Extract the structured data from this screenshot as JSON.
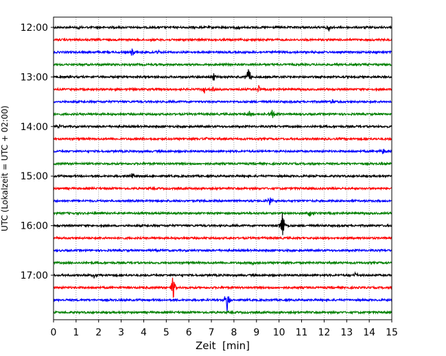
{
  "chart_data": {
    "type": "line",
    "title": "",
    "xlabel": "Zeit  [min]",
    "ylabel": "UTC (Lokalzeit = UTC + 02:00)",
    "xlim": [
      0,
      15
    ],
    "x_ticks": [
      "0",
      "1",
      "2",
      "3",
      "4",
      "5",
      "6",
      "7",
      "8",
      "9",
      "10",
      "11",
      "12",
      "13",
      "14",
      "15"
    ],
    "y_tick_labels": [
      "12:00",
      "13:00",
      "14:00",
      "15:00",
      "16:00",
      "17:00"
    ],
    "grid": "vertical dotted",
    "color_cycle": [
      "#000000",
      "#ff0000",
      "#0000ff",
      "#008000"
    ],
    "trace_minutes": 15,
    "series": [
      {
        "start": "12:00",
        "color": "#000000",
        "events": [
          {
            "t": 1.1,
            "amp": 0.3
          },
          {
            "t": 8.2,
            "amp": 0.25
          },
          {
            "t": 12.2,
            "amp": 0.4
          }
        ]
      },
      {
        "start": "12:15",
        "color": "#ff0000",
        "events": []
      },
      {
        "start": "12:30",
        "color": "#0000ff",
        "events": [
          {
            "t": 3.5,
            "amp": 0.45
          },
          {
            "t": 4.6,
            "amp": 0.25
          }
        ]
      },
      {
        "start": "12:45",
        "color": "#008000",
        "events": []
      },
      {
        "start": "13:00",
        "color": "#000000",
        "events": [
          {
            "t": 7.1,
            "amp": 0.35
          },
          {
            "t": 8.65,
            "amp": 0.9
          }
        ]
      },
      {
        "start": "13:15",
        "color": "#ff0000",
        "events": [
          {
            "t": 6.7,
            "amp": 0.35
          },
          {
            "t": 7.1,
            "amp": 0.3
          },
          {
            "t": 9.1,
            "amp": 0.3
          }
        ]
      },
      {
        "start": "13:30",
        "color": "#0000ff",
        "events": [
          {
            "t": 12.4,
            "amp": 0.2
          }
        ]
      },
      {
        "start": "13:45",
        "color": "#008000",
        "events": [
          {
            "t": 8.7,
            "amp": 0.35
          },
          {
            "t": 9.7,
            "amp": 0.45
          }
        ]
      },
      {
        "start": "14:00",
        "color": "#000000",
        "events": [
          {
            "t": 0.3,
            "amp": 0.25
          }
        ]
      },
      {
        "start": "14:15",
        "color": "#ff0000",
        "events": [
          {
            "t": 6.8,
            "amp": 0.2
          }
        ]
      },
      {
        "start": "14:30",
        "color": "#0000ff",
        "events": [
          {
            "t": 14.6,
            "amp": 0.3
          }
        ]
      },
      {
        "start": "14:45",
        "color": "#008000",
        "events": []
      },
      {
        "start": "15:00",
        "color": "#000000",
        "events": [
          {
            "t": 3.5,
            "amp": 0.25
          }
        ]
      },
      {
        "start": "15:15",
        "color": "#ff0000",
        "events": []
      },
      {
        "start": "15:30",
        "color": "#0000ff",
        "events": [
          {
            "t": 9.6,
            "amp": 0.4
          }
        ]
      },
      {
        "start": "15:45",
        "color": "#008000",
        "events": [
          {
            "t": 11.35,
            "amp": 0.45
          }
        ]
      },
      {
        "start": "16:00",
        "color": "#000000",
        "events": [
          {
            "t": 10.15,
            "amp": 1.4
          }
        ]
      },
      {
        "start": "16:15",
        "color": "#ff0000",
        "events": []
      },
      {
        "start": "16:30",
        "color": "#0000ff",
        "events": []
      },
      {
        "start": "16:45",
        "color": "#008000",
        "events": [
          {
            "t": 8.8,
            "amp": 0.25
          }
        ]
      },
      {
        "start": "17:00",
        "color": "#000000",
        "events": [
          {
            "t": 1.8,
            "amp": 0.3
          },
          {
            "t": 13.4,
            "amp": 0.25
          }
        ]
      },
      {
        "start": "17:15",
        "color": "#ff0000",
        "events": [
          {
            "t": 5.3,
            "amp": 1.1
          }
        ]
      },
      {
        "start": "17:30",
        "color": "#0000ff",
        "events": [
          {
            "t": 7.7,
            "amp": 1.1
          }
        ]
      },
      {
        "start": "17:45",
        "color": "#008000",
        "events": []
      }
    ]
  }
}
